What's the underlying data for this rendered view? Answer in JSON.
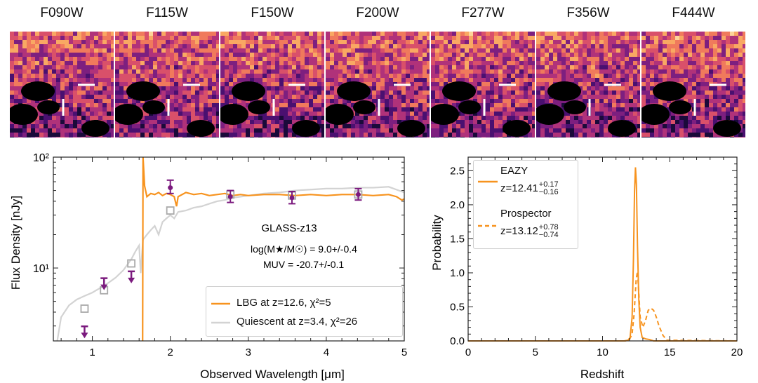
{
  "stamps": {
    "filters": [
      "F090W",
      "F115W",
      "F150W",
      "F200W",
      "F277W",
      "F356W",
      "F444W"
    ]
  },
  "colors": {
    "lbg": "#f7931e",
    "quiescent": "#d3d3d3",
    "photometry": "#7b1a7e",
    "quiescent_marker": "#a9a9a9"
  },
  "chart_data": [
    {
      "type": "line",
      "title": "GLASS-z13",
      "xlabel": "Observed Wavelength [μm]",
      "ylabel": "Flux Density [nJy]",
      "xlim": [
        0.5,
        5.0
      ],
      "ylim": [
        2.2,
        100
      ],
      "yscale": "log",
      "xticks": [
        "1",
        "2",
        "3",
        "4",
        "5"
      ],
      "yticks": [
        "10¹",
        "10²"
      ],
      "annotations": {
        "mass": "log(M★/M☉) = 9.0+/-0.4",
        "muv": "MUV = -20.7+/-0.1"
      },
      "legend": [
        {
          "label": "LBG at z=12.6, χ²=5",
          "color": "#f7931e"
        },
        {
          "label": "Quiescent at z=3.4, χ²=26",
          "color": "#d3d3d3"
        }
      ],
      "series": [
        {
          "name": "LBG at z=12.6, χ²=5",
          "kind": "sed",
          "points": [
            [
              1.645,
              2.2
            ],
            [
              1.65,
              100
            ],
            [
              1.67,
              55
            ],
            [
              1.7,
              44
            ],
            [
              1.75,
              47
            ],
            [
              1.8,
              46
            ],
            [
              1.85,
              48
            ],
            [
              1.9,
              45
            ],
            [
              1.95,
              47
            ],
            [
              2.0,
              46
            ],
            [
              2.05,
              44
            ],
            [
              2.08,
              36
            ],
            [
              2.1,
              44
            ],
            [
              2.2,
              48
            ],
            [
              2.3,
              46
            ],
            [
              2.4,
              47
            ],
            [
              2.5,
              45
            ],
            [
              2.6,
              46
            ],
            [
              2.7,
              47
            ],
            [
              2.8,
              45
            ],
            [
              2.9,
              46
            ],
            [
              3.0,
              45
            ],
            [
              3.2,
              46
            ],
            [
              3.4,
              46
            ],
            [
              3.6,
              45
            ],
            [
              3.8,
              46
            ],
            [
              4.0,
              45
            ],
            [
              4.2,
              46
            ],
            [
              4.4,
              46
            ],
            [
              4.6,
              45
            ],
            [
              4.8,
              46
            ],
            [
              4.9,
              44
            ],
            [
              4.97,
              41
            ],
            [
              5.0,
              42
            ]
          ]
        },
        {
          "name": "Quiescent at z=3.4, χ²=26",
          "kind": "sed",
          "points": [
            [
              0.55,
              2.2
            ],
            [
              0.6,
              3.6
            ],
            [
              0.7,
              4.6
            ],
            [
              0.8,
              5.2
            ],
            [
              0.9,
              5.6
            ],
            [
              1.0,
              6.0
            ],
            [
              1.1,
              6.6
            ],
            [
              1.2,
              7.3
            ],
            [
              1.3,
              8.2
            ],
            [
              1.4,
              9.6
            ],
            [
              1.5,
              12
            ],
            [
              1.55,
              14
            ],
            [
              1.6,
              16
            ],
            [
              1.62,
              9
            ],
            [
              1.65,
              18
            ],
            [
              1.7,
              20
            ],
            [
              1.75,
              22
            ],
            [
              1.8,
              24
            ],
            [
              1.85,
              20
            ],
            [
              1.9,
              26
            ],
            [
              1.95,
              28
            ],
            [
              2.0,
              30
            ],
            [
              2.05,
              28
            ],
            [
              2.1,
              32
            ],
            [
              2.2,
              33
            ],
            [
              2.3,
              35
            ],
            [
              2.4,
              36
            ],
            [
              2.5,
              38
            ],
            [
              2.6,
              40
            ],
            [
              2.7,
              41
            ],
            [
              2.8,
              43
            ],
            [
              2.9,
              44
            ],
            [
              3.0,
              45
            ],
            [
              3.2,
              47
            ],
            [
              3.4,
              48
            ],
            [
              3.6,
              50
            ],
            [
              3.8,
              51
            ],
            [
              4.0,
              52
            ],
            [
              4.2,
              52
            ],
            [
              4.4,
              53
            ],
            [
              4.6,
              53
            ],
            [
              4.8,
              54
            ],
            [
              5.0,
              48
            ]
          ]
        },
        {
          "name": "Photometry",
          "kind": "points",
          "points": [
            {
              "x": 0.9,
              "y": 2.65,
              "limit": true
            },
            {
              "x": 1.15,
              "y": 7.2,
              "limit": true
            },
            {
              "x": 1.5,
              "y": 8.3,
              "limit": true
            },
            {
              "x": 2.0,
              "y": 53,
              "err": [
                47,
                62
              ]
            },
            {
              "x": 2.77,
              "y": 44,
              "err": [
                39,
                50
              ]
            },
            {
              "x": 3.56,
              "y": 43,
              "err": [
                38,
                49
              ]
            },
            {
              "x": 4.41,
              "y": 46,
              "err": [
                41,
                52
              ]
            }
          ]
        },
        {
          "name": "Quiescent model photometry",
          "kind": "squares",
          "points": [
            [
              0.9,
              4.3
            ],
            [
              1.15,
              6.3
            ],
            [
              1.5,
              11
            ],
            [
              2.0,
              33
            ],
            [
              2.77,
              46
            ],
            [
              3.56,
              45
            ],
            [
              4.41,
              46
            ]
          ]
        }
      ]
    },
    {
      "type": "line",
      "xlabel": "Redshift",
      "ylabel": "Probability",
      "xlim": [
        0,
        20
      ],
      "ylim": [
        0,
        2.7
      ],
      "xticks": [
        "0",
        "5",
        "10",
        "15",
        "20"
      ],
      "yticks": [
        "0.0",
        "0.5",
        "1.0",
        "1.5",
        "2.0",
        "2.5"
      ],
      "legend": [
        {
          "label": "EAZY",
          "zline": "z=12.41",
          "sup": "+0.17",
          "sub": "−0.16",
          "color": "#f7931e",
          "style": "solid"
        },
        {
          "label": "Prospector",
          "zline": "z=13.12",
          "sup": "+0.78",
          "sub": "−0.74",
          "color": "#f7931e",
          "style": "dashed"
        }
      ],
      "series": [
        {
          "name": "EAZY",
          "style": "solid",
          "x": [
            0,
            11.6,
            11.9,
            12.05,
            12.2,
            12.3,
            12.38,
            12.45,
            12.52,
            12.6,
            12.7,
            12.8,
            12.95,
            13.2,
            13.5,
            13.8,
            20
          ],
          "y": [
            0,
            0,
            0.01,
            0.05,
            0.35,
            1.2,
            2.2,
            2.55,
            2.3,
            1.4,
            0.6,
            0.2,
            0.05,
            0.03,
            0.02,
            0,
            0
          ]
        },
        {
          "name": "Prospector",
          "style": "dashed",
          "x": [
            0,
            11.7,
            12.0,
            12.2,
            12.35,
            12.5,
            12.6,
            12.7,
            12.8,
            13.0,
            13.2,
            13.4,
            13.6,
            13.8,
            14.0,
            14.2,
            14.5,
            14.8,
            20
          ],
          "y": [
            0,
            0,
            0.02,
            0.1,
            0.4,
            0.9,
            1.02,
            0.7,
            0.35,
            0.2,
            0.3,
            0.45,
            0.48,
            0.45,
            0.35,
            0.22,
            0.08,
            0.01,
            0
          ]
        }
      ]
    }
  ]
}
